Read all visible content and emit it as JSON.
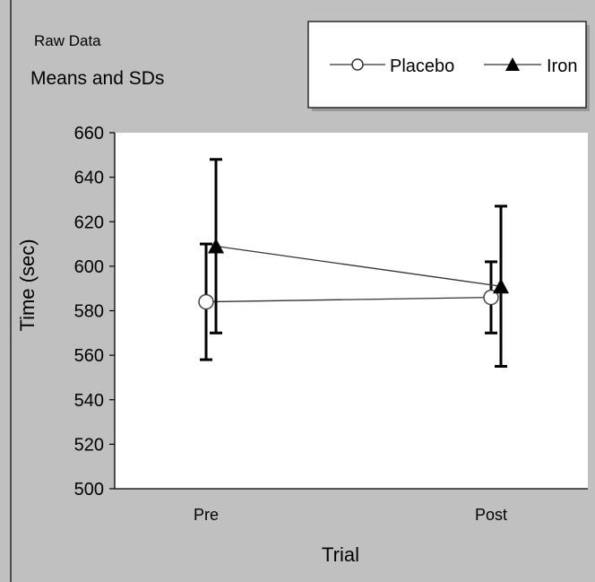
{
  "chart_data": {
    "type": "line",
    "notes": [
      "Raw Data",
      "Means and SDs"
    ],
    "xlabel": "Trial",
    "ylabel": "Time (sec)",
    "categories": [
      "Pre",
      "Post"
    ],
    "ylim": [
      500,
      660
    ],
    "yticks": [
      500,
      520,
      540,
      560,
      580,
      600,
      620,
      640,
      660
    ],
    "legend_position": "top-right",
    "grid": false,
    "series": [
      {
        "name": "Placebo",
        "marker": "open-circle",
        "values": [
          584,
          586
        ],
        "sd": [
          26,
          16
        ]
      },
      {
        "name": "Iron",
        "marker": "filled-triangle",
        "values": [
          609,
          591
        ],
        "sd": [
          39,
          36
        ]
      }
    ]
  },
  "colors": {
    "background": "#c0c0c0",
    "plot_area": "#ffffff",
    "ink": "#000000",
    "series_line": "#333333"
  }
}
